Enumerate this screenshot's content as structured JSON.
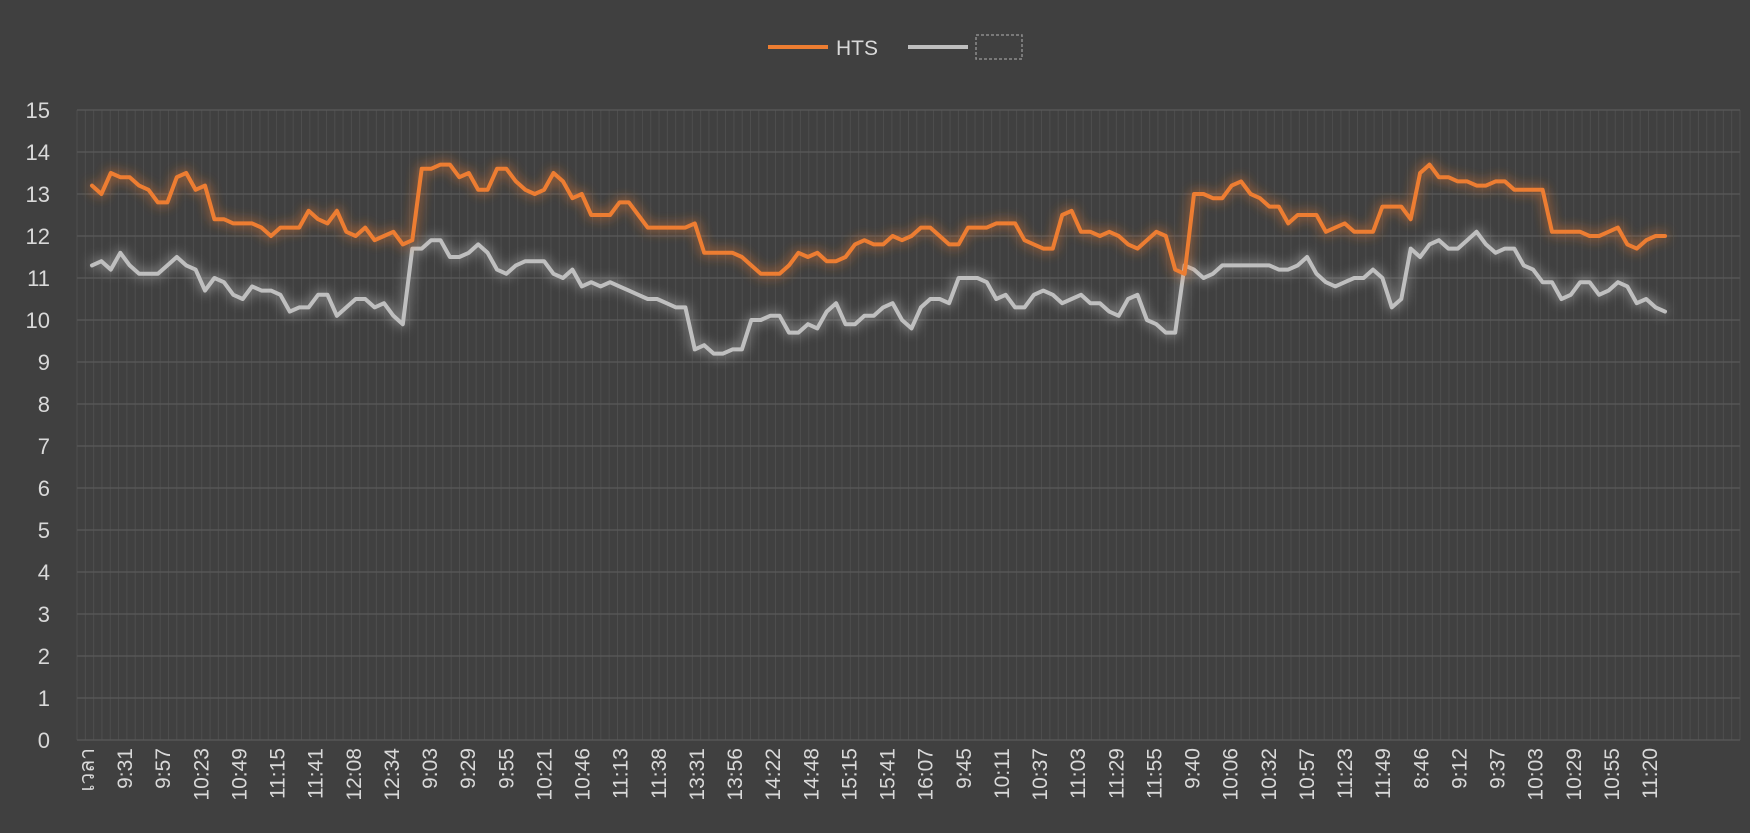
{
  "chart_data": {
    "type": "line",
    "title": "",
    "xlabel": "",
    "ylabel": "",
    "ylim": [
      0,
      15
    ],
    "y_ticks": [
      0,
      1,
      2,
      3,
      4,
      5,
      6,
      7,
      8,
      9,
      10,
      11,
      12,
      13,
      14,
      15
    ],
    "grid": true,
    "legend": "top-center",
    "x_labels": [
      "เวลา",
      "9:31",
      "9:57",
      "10:23",
      "10:49",
      "11:15",
      "11:41",
      "12:08",
      "12:34",
      "9:03",
      "9:29",
      "9:55",
      "10:21",
      "10:46",
      "11:13",
      "11:38",
      "13:31",
      "13:56",
      "14:22",
      "14:48",
      "15:15",
      "15:41",
      "16:07",
      "9:45",
      "10:11",
      "10:37",
      "11:03",
      "11:29",
      "11:55",
      "9:40",
      "10:06",
      "10:32",
      "10:57",
      "11:23",
      "11:49",
      "8:46",
      "9:12",
      "9:37",
      "10:03",
      "10:29",
      "10:55",
      "11:20"
    ],
    "series": [
      {
        "name": "HTS",
        "color": "#ed7d31",
        "values": [
          13.2,
          13.0,
          13.5,
          13.4,
          13.4,
          13.2,
          13.1,
          12.8,
          12.8,
          13.4,
          13.5,
          13.1,
          13.2,
          12.4,
          12.4,
          12.3,
          12.3,
          12.3,
          12.2,
          12.0,
          12.2,
          12.2,
          12.2,
          12.6,
          12.4,
          12.3,
          12.6,
          12.1,
          12.0,
          12.2,
          11.9,
          12.0,
          12.1,
          11.8,
          11.9,
          13.6,
          13.6,
          13.7,
          13.7,
          13.4,
          13.5,
          13.1,
          13.1,
          13.6,
          13.6,
          13.3,
          13.1,
          13.0,
          13.1,
          13.5,
          13.3,
          12.9,
          13.0,
          12.5,
          12.5,
          12.5,
          12.8,
          12.8,
          12.5,
          12.2,
          12.2,
          12.2,
          12.2,
          12.2,
          12.3,
          11.6,
          11.6,
          11.6,
          11.6,
          11.5,
          11.3,
          11.1,
          11.1,
          11.1,
          11.3,
          11.6,
          11.5,
          11.6,
          11.4,
          11.4,
          11.5,
          11.8,
          11.9,
          11.8,
          11.8,
          12.0,
          11.9,
          12.0,
          12.2,
          12.2,
          12.0,
          11.8,
          11.8,
          12.2,
          12.2,
          12.2,
          12.3,
          12.3,
          12.3,
          11.9,
          11.8,
          11.7,
          11.7,
          12.5,
          12.6,
          12.1,
          12.1,
          12.0,
          12.1,
          12.0,
          11.8,
          11.7,
          11.9,
          12.1,
          12.0,
          11.2,
          11.1,
          13.0,
          13.0,
          12.9,
          12.9,
          13.2,
          13.3,
          13.0,
          12.9,
          12.7,
          12.7,
          12.3,
          12.5,
          12.5,
          12.5,
          12.1,
          12.2,
          12.3,
          12.1,
          12.1,
          12.1,
          12.7,
          12.7,
          12.7,
          12.4,
          13.5,
          13.7,
          13.4,
          13.4,
          13.3,
          13.3,
          13.2,
          13.2,
          13.3,
          13.3,
          13.1,
          13.1,
          13.1,
          13.1,
          12.1,
          12.1,
          12.1,
          12.1,
          12.0,
          12.0,
          12.1,
          12.2,
          11.8,
          11.7,
          11.9,
          12.0,
          12.0
        ]
      },
      {
        "name": "",
        "color": "#bfbfbf",
        "values": [
          11.3,
          11.4,
          11.2,
          11.6,
          11.3,
          11.1,
          11.1,
          11.1,
          11.3,
          11.5,
          11.3,
          11.2,
          10.7,
          11.0,
          10.9,
          10.6,
          10.5,
          10.8,
          10.7,
          10.7,
          10.6,
          10.2,
          10.3,
          10.3,
          10.6,
          10.6,
          10.1,
          10.3,
          10.5,
          10.5,
          10.3,
          10.4,
          10.1,
          9.9,
          11.7,
          11.7,
          11.9,
          11.9,
          11.5,
          11.5,
          11.6,
          11.8,
          11.6,
          11.2,
          11.1,
          11.3,
          11.4,
          11.4,
          11.4,
          11.1,
          11.0,
          11.2,
          10.8,
          10.9,
          10.8,
          10.9,
          10.8,
          10.7,
          10.6,
          10.5,
          10.5,
          10.4,
          10.3,
          10.3,
          9.3,
          9.4,
          9.2,
          9.2,
          9.3,
          9.3,
          10.0,
          10.0,
          10.1,
          10.1,
          9.7,
          9.7,
          9.9,
          9.8,
          10.2,
          10.4,
          9.9,
          9.9,
          10.1,
          10.1,
          10.3,
          10.4,
          10.0,
          9.8,
          10.3,
          10.5,
          10.5,
          10.4,
          11.0,
          11.0,
          11.0,
          10.9,
          10.5,
          10.6,
          10.3,
          10.3,
          10.6,
          10.7,
          10.6,
          10.4,
          10.5,
          10.6,
          10.4,
          10.4,
          10.2,
          10.1,
          10.5,
          10.6,
          10.0,
          9.9,
          9.7,
          9.7,
          11.3,
          11.2,
          11.0,
          11.1,
          11.3,
          11.3,
          11.3,
          11.3,
          11.3,
          11.3,
          11.2,
          11.2,
          11.3,
          11.5,
          11.1,
          10.9,
          10.8,
          10.9,
          11.0,
          11.0,
          11.2,
          11.0,
          10.3,
          10.5,
          11.7,
          11.5,
          11.8,
          11.9,
          11.7,
          11.7,
          11.9,
          12.1,
          11.8,
          11.6,
          11.7,
          11.7,
          11.3,
          11.2,
          10.9,
          10.9,
          10.5,
          10.6,
          10.9,
          10.9,
          10.6,
          10.7,
          10.9,
          10.8,
          10.4,
          10.5,
          10.3,
          10.2
        ]
      }
    ]
  }
}
